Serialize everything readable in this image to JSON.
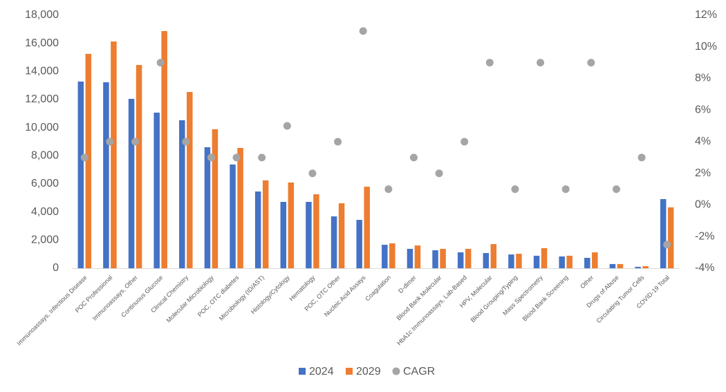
{
  "chart_data": {
    "type": "bar",
    "title": "",
    "xlabel": "",
    "ylabel": "",
    "y2label": "",
    "ylim": [
      0,
      18000
    ],
    "y2lim": [
      -0.04,
      0.12
    ],
    "grid": false,
    "legend_position": "bottom",
    "yticks": [
      "0",
      "2,000",
      "4,000",
      "6,000",
      "8,000",
      "10,000",
      "12,000",
      "14,000",
      "16,000",
      "18,000"
    ],
    "ytick_values": [
      0,
      2000,
      4000,
      6000,
      8000,
      10000,
      12000,
      14000,
      16000,
      18000
    ],
    "y2ticks": [
      "-4%",
      "-2%",
      "0%",
      "2%",
      "4%",
      "6%",
      "8%",
      "10%",
      "12%"
    ],
    "y2tick_values": [
      -0.04,
      -0.02,
      0,
      0.02,
      0.04,
      0.06,
      0.08,
      0.1,
      0.12
    ],
    "categories": [
      "Immunoassays, Infectious Disease",
      "POC Professional",
      "Immunoassays, Other",
      "Continuous Glucose",
      "Clinical Chemistry",
      "Molecular Microbiology",
      "POC, OTC diabetes",
      "Microbiology (ID/AST)",
      "Histology/Cytology",
      "Hematology",
      "POC, OTC Other",
      "Nucleic Acid Assays",
      "Coagulation",
      "D-dimer",
      "Blood Bank Molecular",
      "HbA1c Immunoassays, Lab-Based",
      "HPV, Molecular",
      "Blood Grouping/Typing",
      "Mass Spectrometry",
      "Blood Bank Screening",
      "Other",
      "Drugs of Abuse",
      "Circulating Tumor Cells",
      "COVID-19 Total"
    ],
    "series": [
      {
        "name": "2024",
        "type": "bar",
        "axis": "left",
        "color": "#4472C4",
        "values": [
          13280,
          13230,
          12050,
          11070,
          10530,
          8610,
          7380,
          5460,
          4720,
          4720,
          3690,
          3440,
          1670,
          1380,
          1280,
          1130,
          1080,
          980,
          890,
          840,
          740,
          300,
          100,
          4920
        ]
      },
      {
        "name": "2029",
        "type": "bar",
        "axis": "left",
        "color": "#ED7D31",
        "values": [
          15250,
          16130,
          14460,
          16870,
          12540,
          9890,
          8560,
          6250,
          6100,
          5260,
          4620,
          5800,
          1770,
          1620,
          1380,
          1380,
          1720,
          1030,
          1430,
          890,
          1130,
          300,
          150,
          4330
        ]
      },
      {
        "name": "CAGR",
        "type": "scatter",
        "axis": "right",
        "color": "#A5A5A5",
        "values": [
          0.03,
          0.04,
          0.04,
          0.09,
          0.04,
          0.03,
          0.03,
          0.03,
          0.05,
          0.02,
          0.04,
          0.11,
          0.01,
          0.03,
          0.02,
          0.04,
          0.09,
          0.01,
          0.09,
          0.01,
          0.09,
          0.01,
          0.03,
          -0.025
        ]
      }
    ]
  }
}
